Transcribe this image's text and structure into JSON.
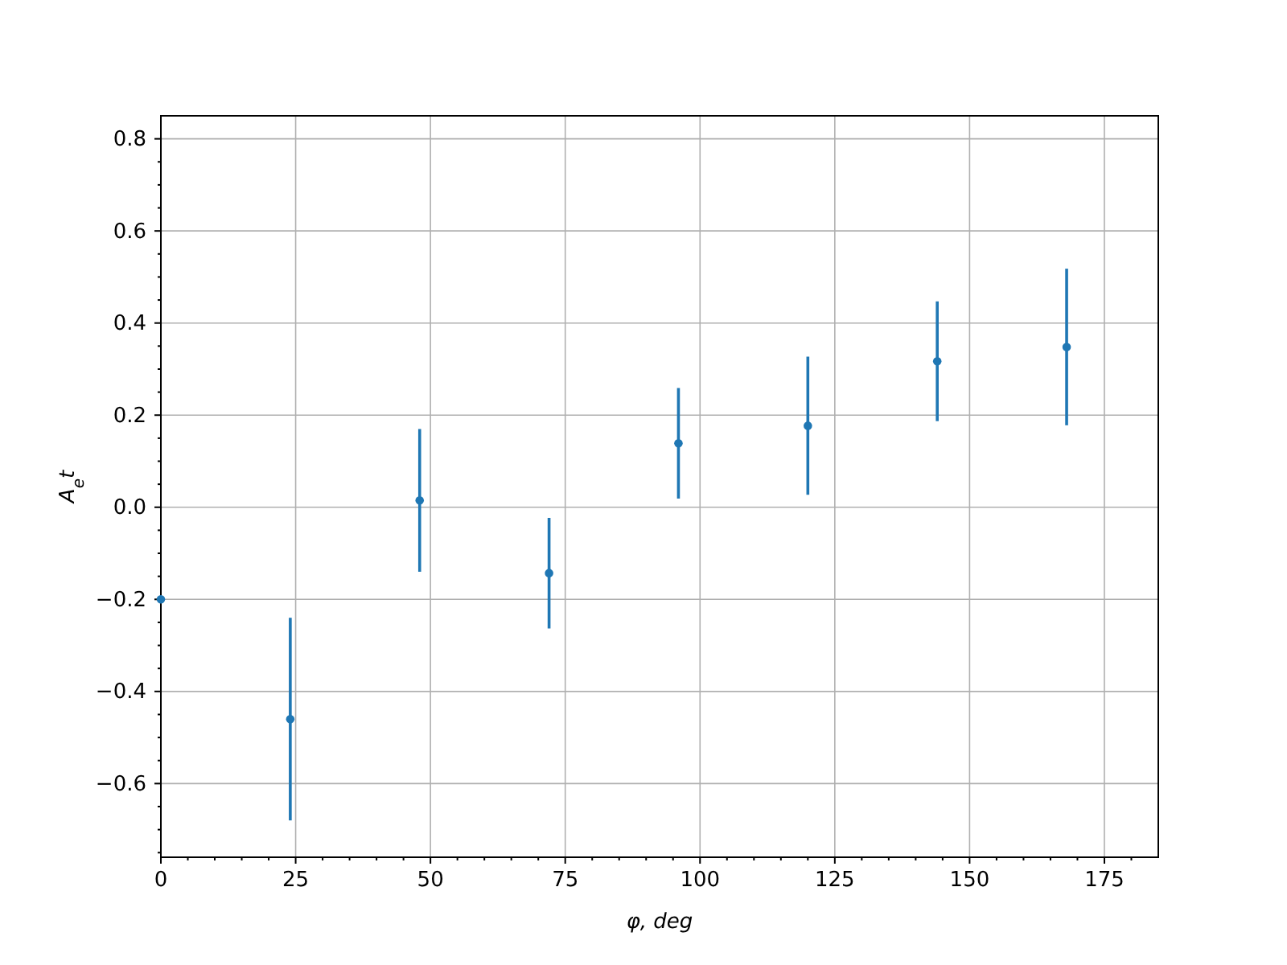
{
  "chart_data": {
    "type": "scatter",
    "xlabel": "φ, deg",
    "ylabel": "A$_{e}$t",
    "x": [
      0,
      24,
      48,
      72,
      96,
      120,
      144,
      168
    ],
    "series": [
      {
        "color": "#1f77b4",
        "values": [
          -0.2,
          -0.46,
          0.015,
          -0.143,
          0.139,
          0.177,
          0.317,
          0.348
        ],
        "errors": [
          null,
          0.22,
          0.155,
          0.12,
          0.12,
          0.15,
          0.13,
          0.17
        ]
      }
    ],
    "xlim": [
      0,
      185
    ],
    "ylim": [
      -0.76,
      0.85
    ],
    "xticks": [
      0,
      {
        "value": 5,
        "label": null
      },
      {
        "value": 10,
        "label": null
      },
      {
        "value": 15,
        "label": null
      },
      {
        "value": 20,
        "label": null
      },
      25,
      {
        "value": 30,
        "label": null
      },
      {
        "value": 35,
        "label": null
      },
      {
        "value": 40,
        "label": null
      },
      {
        "value": 45,
        "label": null
      },
      50,
      {
        "value": 55,
        "label": null
      },
      {
        "value": 60,
        "label": null
      },
      {
        "value": 65,
        "label": null
      },
      {
        "value": 70,
        "label": null
      },
      75,
      {
        "value": 80,
        "label": null
      },
      {
        "value": 85,
        "label": null
      },
      {
        "value": 90,
        "label": null
      },
      {
        "value": 95,
        "label": null
      },
      100,
      {
        "value": 105,
        "label": null
      },
      {
        "value": 110,
        "label": null
      },
      {
        "value": 115,
        "label": null
      },
      {
        "value": 120,
        "label": null
      },
      125,
      {
        "value": 130,
        "label": null
      },
      {
        "value": 135,
        "label": null
      },
      {
        "value": 140,
        "label": null
      },
      {
        "value": 145,
        "label": null
      },
      150,
      {
        "value": 155,
        "label": null
      },
      {
        "value": 160,
        "label": null
      },
      {
        "value": 165,
        "label": null
      },
      {
        "value": 170,
        "label": null
      },
      175,
      {
        "value": 180,
        "label": null
      }
    ],
    "yticks": [
      {
        "value": -0.75,
        "label": null
      },
      {
        "value": -0.6,
        "label": "−0.6"
      },
      {
        "value": -0.65,
        "label": null
      },
      {
        "value": -0.7,
        "label": null
      },
      {
        "value": -0.55,
        "label": null
      },
      {
        "value": -0.5,
        "label": null
      },
      {
        "value": -0.45,
        "label": null
      },
      {
        "value": -0.4,
        "label": "−0.4"
      },
      {
        "value": -0.35,
        "label": null
      },
      {
        "value": -0.3,
        "label": null
      },
      {
        "value": -0.25,
        "label": null
      },
      {
        "value": -0.2,
        "label": "−0.2"
      },
      {
        "value": -0.15,
        "label": null
      },
      {
        "value": -0.1,
        "label": null
      },
      {
        "value": -0.05,
        "label": null
      },
      {
        "value": 0,
        "label": "0.0"
      },
      {
        "value": 0.05,
        "label": null
      },
      {
        "value": 0.1,
        "label": null
      },
      {
        "value": 0.15,
        "label": null
      },
      {
        "value": 0.2,
        "label": "0.2"
      },
      {
        "value": 0.25,
        "label": null
      },
      {
        "value": 0.3,
        "label": null
      },
      {
        "value": 0.35,
        "label": null
      },
      {
        "value": 0.4,
        "label": "0.4"
      },
      {
        "value": 0.45,
        "label": null
      },
      {
        "value": 0.5,
        "label": null
      },
      {
        "value": 0.55,
        "label": null
      },
      {
        "value": 0.6,
        "label": "0.6"
      },
      {
        "value": 0.65,
        "label": null
      },
      {
        "value": 0.7,
        "label": null
      },
      {
        "value": 0.75,
        "label": null
      },
      {
        "value": 0.8,
        "label": "0.8"
      }
    ],
    "grid": true,
    "marker": "circle"
  }
}
